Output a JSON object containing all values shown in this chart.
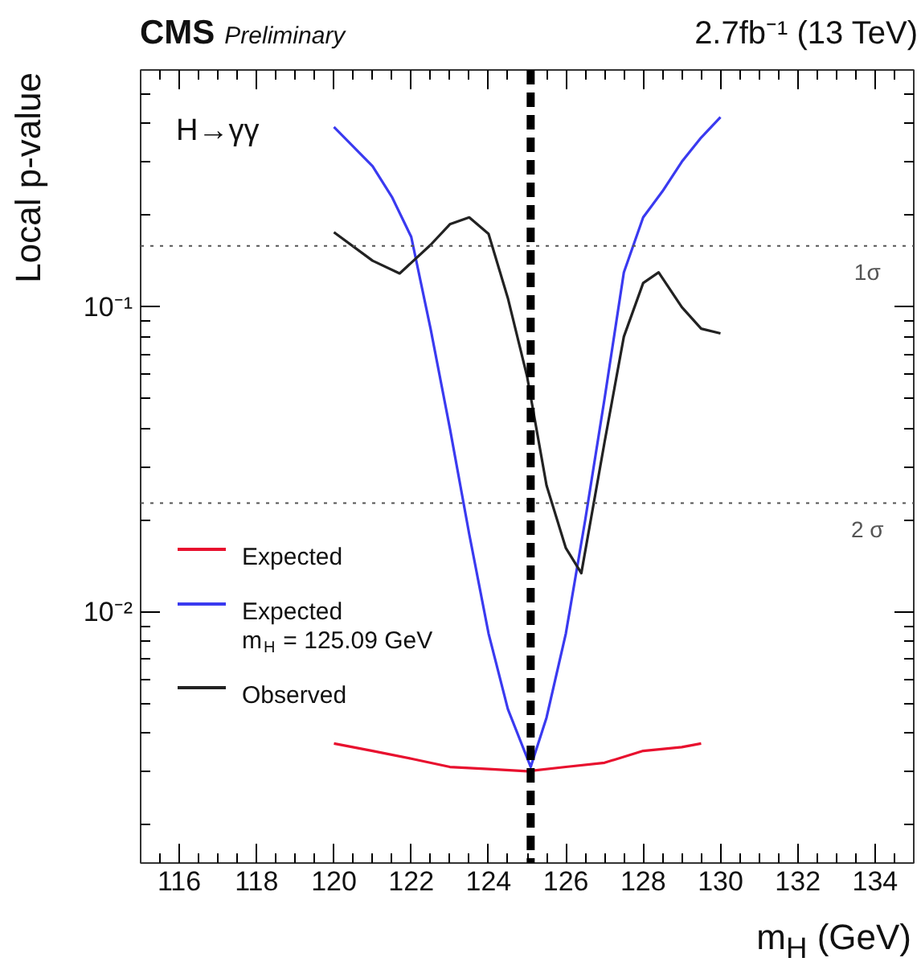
{
  "chart_data": {
    "type": "line",
    "title": "CMS",
    "subtitle": "Preliminary",
    "xlabel": "m$_{H}$ (GeV)",
    "ylabel": "Local p-value",
    "annotations": [
      "H→γγ",
      "2.7fb⁻¹ (13 TeV)"
    ],
    "log": "y",
    "xlim": [
      115,
      135
    ],
    "xticks": [
      116,
      118,
      120,
      122,
      124,
      126,
      128,
      130,
      132,
      134
    ],
    "ylim": [
      0.0015,
      0.6
    ],
    "yticks": [
      {
        "value": 0.01,
        "label": "10⁻²"
      },
      {
        "value": 0.1,
        "label": "10⁻¹"
      }
    ],
    "grid": false,
    "legend": "bottom left",
    "line_style": "solid",
    "ref_lines": [
      {
        "axis": "y",
        "value": 0.1587,
        "label": "1σ",
        "color": "#555555",
        "line_style": "dotted"
      },
      {
        "axis": "y",
        "value": 0.02275,
        "label": "2 σ",
        "color": "#555555",
        "line_style": "dotted"
      },
      {
        "axis": "x",
        "value": 125.09,
        "color": "#000000",
        "line_style": "dashed"
      }
    ],
    "series": [
      {
        "name": "Expected",
        "color": "#e8102e",
        "x": [
          120,
          121,
          122,
          123,
          124,
          125,
          126,
          127,
          128,
          129,
          129.5
        ],
        "values": [
          0.0037,
          0.0035,
          0.0033,
          0.0031,
          0.00305,
          0.003,
          0.0031,
          0.0032,
          0.0035,
          0.0036,
          0.0037
        ]
      },
      {
        "name": "Expected\nm$_{H}$ = 125.09 GeV",
        "color": "#3a3af0",
        "x": [
          120,
          121,
          121.5,
          122,
          122.5,
          123,
          123.5,
          124,
          124.5,
          125.09,
          125.5,
          126,
          126.5,
          127,
          127.5,
          128,
          128.5,
          129,
          129.5,
          130
        ],
        "values": [
          0.39,
          0.29,
          0.23,
          0.17,
          0.085,
          0.04,
          0.018,
          0.0085,
          0.0048,
          0.0031,
          0.0045,
          0.0085,
          0.02,
          0.05,
          0.13,
          0.197,
          0.24,
          0.3,
          0.36,
          0.42
        ]
      },
      {
        "name": "Observed",
        "color": "#222222",
        "x": [
          120,
          121,
          121.7,
          122.5,
          123,
          123.5,
          124,
          124.5,
          125,
          125.5,
          126,
          126.4,
          127,
          127.5,
          128,
          128.4,
          129,
          129.5,
          130
        ],
        "values": [
          0.176,
          0.142,
          0.129,
          0.16,
          0.187,
          0.197,
          0.174,
          0.107,
          0.059,
          0.026,
          0.0162,
          0.0134,
          0.036,
          0.08,
          0.12,
          0.13,
          0.1,
          0.085,
          0.082
        ]
      }
    ]
  }
}
